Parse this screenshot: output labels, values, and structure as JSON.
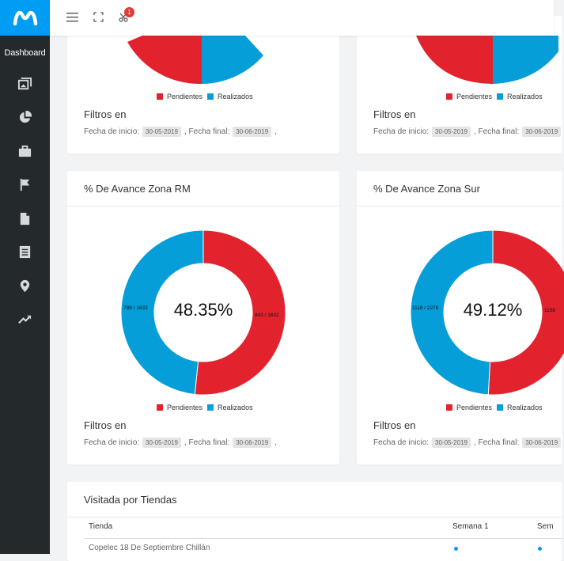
{
  "colors": {
    "brand": "#019df4",
    "pendientes": "#e2232e",
    "realizados": "#069ed8",
    "sidebar": "#24292c"
  },
  "sidebar": {
    "title": "Dashboard",
    "logo": "movistar-m-logo",
    "icons": [
      "gallery-icon",
      "pie-chart-icon",
      "briefcase-icon",
      "flag-icon",
      "file-icon",
      "list-document-icon",
      "map-pin-icon",
      "trending-up-icon"
    ]
  },
  "topbar": {
    "icons": [
      "hamburger-menu-icon",
      "fullscreen-icon",
      "scissors-icon"
    ],
    "badge": "1"
  },
  "legend": {
    "pendientes": "Pendientes",
    "realizados": "Realizados"
  },
  "filtros": {
    "label": "Filtros en",
    "fecha_inicio_label": "Fecha de inicio:",
    "fecha_inicio": "30-05-2019",
    "fecha_final_label": ", Fecha final:",
    "fecha_final": "30-06-2019",
    "trailing": ","
  },
  "cards": {
    "rm": {
      "title": "% De Avance Zona RM",
      "percent": "48.35%",
      "realizados_label": "789 / 1632",
      "pendientes_label": "843 / 1632"
    },
    "sur": {
      "title": "% De Avance Zona Sur",
      "percent": "49.12%",
      "realizados_label": "1118 / 2276",
      "pendientes_label": "1158"
    }
  },
  "chart_data": [
    {
      "type": "pie",
      "title": "% De Avance Zona RM",
      "categories": [
        "Pendientes",
        "Realizados"
      ],
      "values": [
        843,
        789
      ],
      "center_label": "48.35%"
    },
    {
      "type": "pie",
      "title": "% De Avance Zona Sur",
      "categories": [
        "Pendientes",
        "Realizados"
      ],
      "values": [
        1158,
        1118
      ],
      "center_label": "49.12%"
    }
  ],
  "table": {
    "title": "Visitada por Tiendas",
    "columns": [
      "Tienda",
      "Semana 1",
      "Sem"
    ],
    "rows": [
      {
        "tienda": "Copelec 18 De Septiembre Chillán"
      }
    ]
  }
}
